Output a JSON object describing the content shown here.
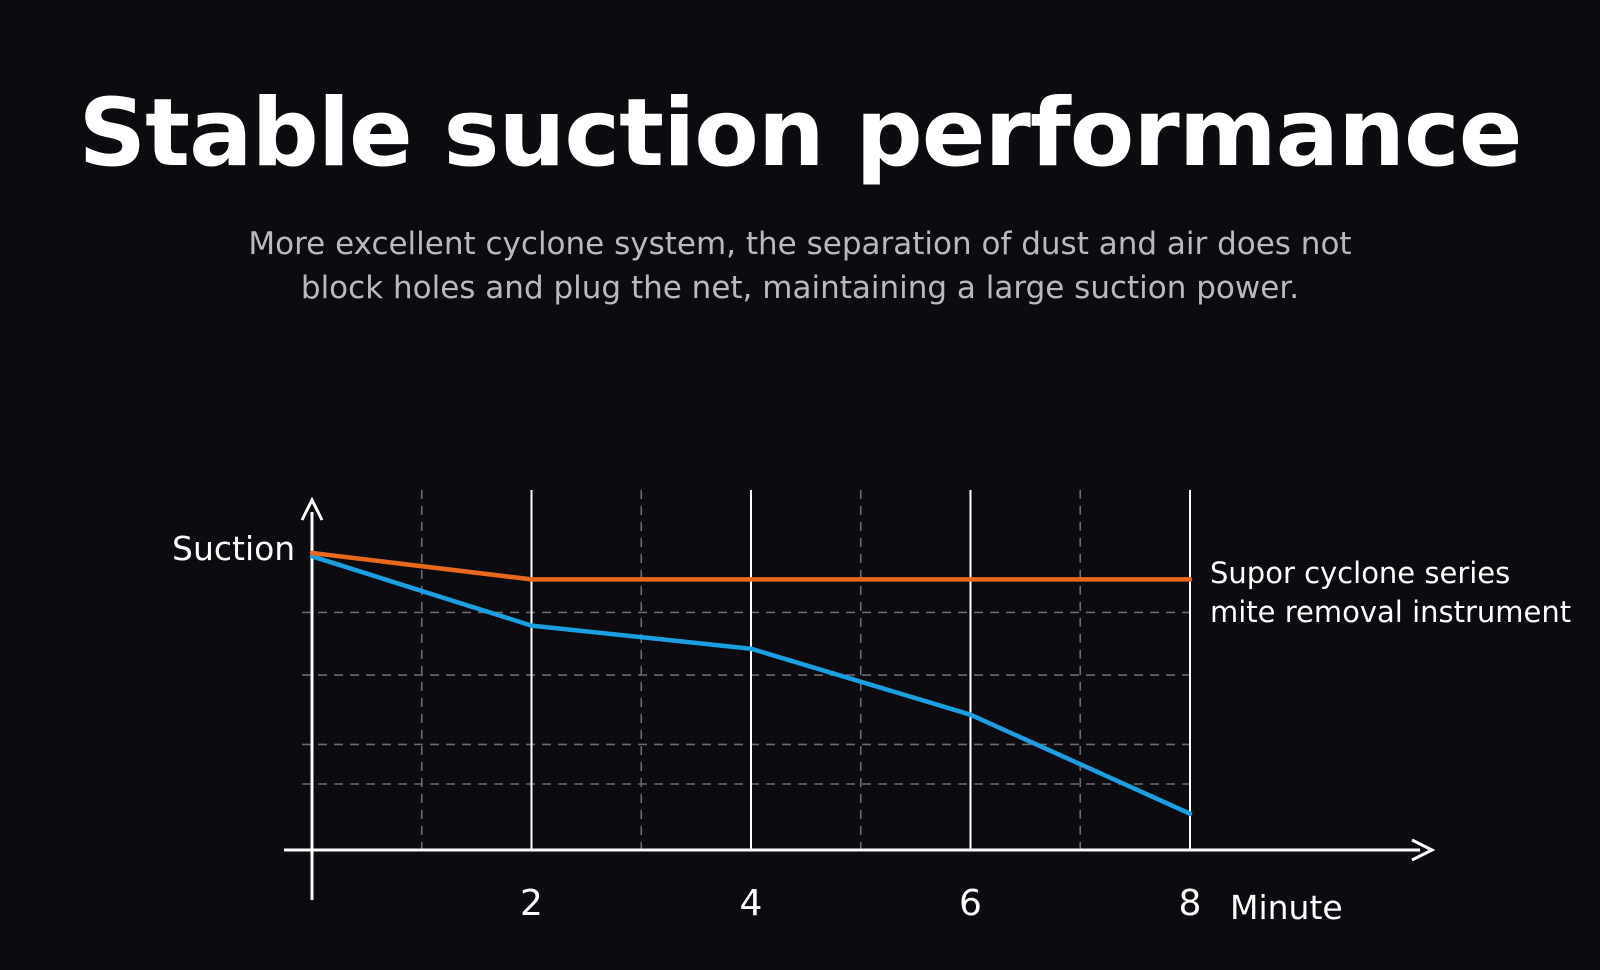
{
  "header": {
    "title": "Stable suction performance",
    "subtitle_line1": "More excellent cyclone system, the separation of dust and air does not",
    "subtitle_line2": "block holes and plug the net, maintaining a large suction power."
  },
  "colors": {
    "background": "#0b0b10",
    "supor_series": "#e8691c",
    "other_series": "#1a9fe0",
    "axis": "#ffffff",
    "grid": "#6b6b70"
  },
  "chart_data": {
    "type": "line",
    "title": "",
    "ylabel": "Suction",
    "xlabel": "Minute",
    "x_ticks": [
      "2",
      "4",
      "6",
      "8"
    ],
    "xlim": [
      0,
      8
    ],
    "ylim": [
      0,
      100
    ],
    "grid": "dashed major and minor",
    "series": [
      {
        "name": "Supor cyclone series mite removal instrument",
        "label_lines": [
          "Supor cyclone series",
          "mite removal instrument"
        ],
        "color": "#e8691c",
        "x": [
          0,
          2,
          4,
          6,
          8
        ],
        "y": [
          90,
          82,
          82,
          82,
          82
        ]
      },
      {
        "name": "",
        "color": "#1a9fe0",
        "x": [
          0,
          2,
          4,
          6,
          8
        ],
        "y": [
          89,
          68,
          61,
          41,
          11
        ]
      }
    ]
  }
}
